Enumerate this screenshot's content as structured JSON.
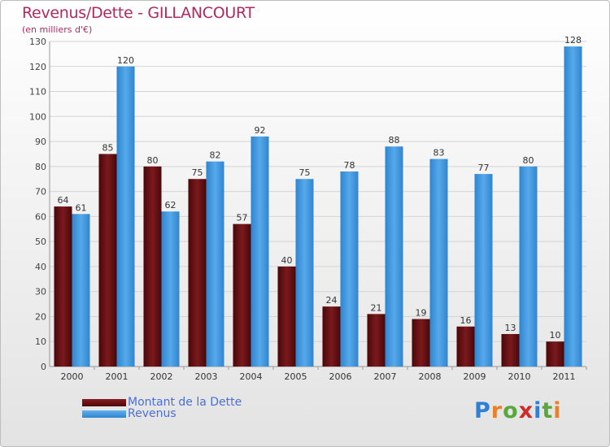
{
  "header": {
    "title": "Revenus/Dette - GILLANCOURT",
    "subtitle": "(en milliers d'€)"
  },
  "legend": {
    "items": [
      {
        "label": "Montant de la Dette",
        "color": "#6b0f12"
      },
      {
        "label": "Revenus",
        "color": "#3d93dc"
      }
    ]
  },
  "brand": {
    "text": "Proxiti",
    "letter_colors": [
      "#2f7fd4",
      "#e8812d",
      "#5aa83c",
      "#cf2b2b",
      "#2f7fd4",
      "#5aa83c",
      "#e8812d"
    ]
  },
  "chart_data": {
    "type": "bar",
    "title": "Revenus/Dette - GILLANCOURT",
    "subtitle": "(en milliers d'€)",
    "categories": [
      "2000",
      "2001",
      "2002",
      "2003",
      "2004",
      "2005",
      "2006",
      "2007",
      "2008",
      "2009",
      "2010",
      "2011"
    ],
    "series": [
      {
        "name": "Montant de la Dette",
        "color": "#6b0f12",
        "values": [
          64,
          85,
          80,
          75,
          57,
          40,
          24,
          21,
          19,
          16,
          13,
          10
        ]
      },
      {
        "name": "Revenus",
        "color": "#3d93dc",
        "values": [
          61,
          120,
          62,
          82,
          92,
          75,
          78,
          88,
          83,
          77,
          80,
          128
        ]
      }
    ],
    "ylim": [
      0,
      130
    ],
    "yticks": [
      0,
      10,
      20,
      30,
      40,
      50,
      60,
      70,
      80,
      90,
      100,
      110,
      120,
      130
    ],
    "grid": true,
    "legend_position": "bottom-left"
  }
}
